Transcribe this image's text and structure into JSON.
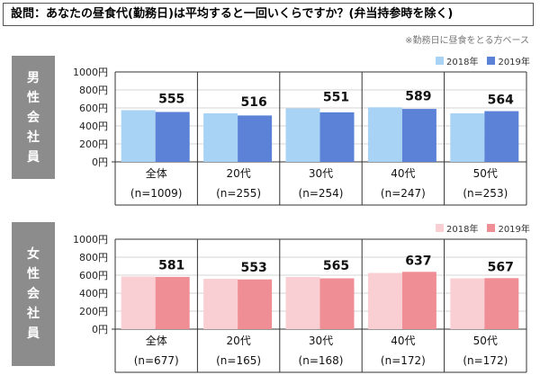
{
  "question": "設問：あなたの昼食代(勤務日)は平均すると一回いくらですか？(弁当持参時を除く)",
  "note": "※勤務日に昼食をとる方ベース",
  "chart_data": [
    {
      "type": "bar",
      "panel_label": [
        "男",
        "性",
        "会",
        "社",
        "員"
      ],
      "categories": [
        "全体",
        "20代",
        "30代",
        "40代",
        "50代"
      ],
      "counts": [
        "(n=1009)",
        "(n=255)",
        "(n=254)",
        "(n=247)",
        "(n=253)"
      ],
      "yticks": [
        "1000円",
        "800円",
        "600円",
        "400円",
        "200円",
        "0円"
      ],
      "ylim": [
        0,
        1000
      ],
      "series": [
        {
          "name": "2018年",
          "color": "#a9d3f5",
          "values": [
            575,
            540,
            595,
            607,
            540
          ]
        },
        {
          "name": "2019年",
          "color": "#5b82d6",
          "values": [
            555,
            516,
            551,
            589,
            564
          ]
        }
      ],
      "labels": [
        "555",
        "516",
        "551",
        "589",
        "564"
      ]
    },
    {
      "type": "bar",
      "panel_label": [
        "女",
        "性",
        "会",
        "社",
        "員"
      ],
      "categories": [
        "全体",
        "20代",
        "30代",
        "40代",
        "50代"
      ],
      "counts": [
        "(n=677)",
        "(n=165)",
        "(n=168)",
        "(n=172)",
        "(n=172)"
      ],
      "yticks": [
        "1000円",
        "800円",
        "600円",
        "400円",
        "200円",
        "0円"
      ],
      "ylim": [
        0,
        1000
      ],
      "series": [
        {
          "name": "2018年",
          "color": "#f9cfd3",
          "values": [
            585,
            560,
            580,
            625,
            565
          ]
        },
        {
          "name": "2019年",
          "color": "#f08e96",
          "values": [
            581,
            553,
            565,
            637,
            567
          ]
        }
      ],
      "labels": [
        "581",
        "553",
        "565",
        "637",
        "567"
      ]
    }
  ]
}
